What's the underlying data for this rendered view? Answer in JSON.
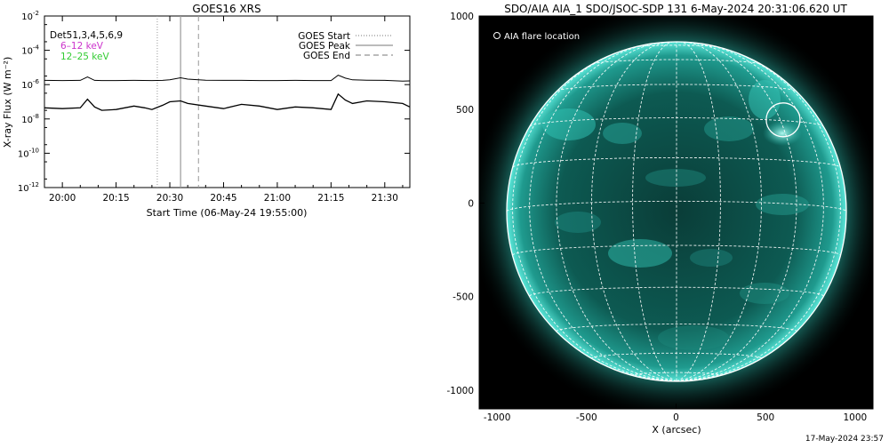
{
  "goes_panel": {
    "title": "GOES16 XRS",
    "xlabel": "Start Time (06-May-24 19:55:00)",
    "ylabel": "X-ray Flux (W m⁻²)",
    "detectors_label": "Det51,3,4,5,6,9",
    "legend_low": {
      "text": "6–12 keV",
      "color": "#cc33cc"
    },
    "legend_high": {
      "text": "12–25 keV",
      "color": "#33cc33"
    },
    "marker_legend": [
      {
        "text": "GOES Start",
        "style": "dotted"
      },
      {
        "text": "GOES Peak",
        "style": "solid"
      },
      {
        "text": "GOES End",
        "style": "dashed"
      }
    ]
  },
  "aia_panel": {
    "title": "SDO/AIA AIA_1 SDO/JSOC-SDP 131  6-May-2024 20:31:06.620 UT",
    "legend_text": "AIA flare location",
    "xlabel": "X (arcsec)",
    "colors": {
      "sun_core": "#0a4a44",
      "sun_bright": "#3fd6c8",
      "background": "#000000"
    }
  },
  "footer_timestamp": "17-May-2024 23:57",
  "chart_data": [
    {
      "type": "line",
      "title": "GOES16 XRS",
      "xlabel": "Start Time (06-May-24 19:55:00)",
      "ylabel": "X-ray Flux (W m⁻²)",
      "x_unit": "minutes since 19:55:00",
      "xlim": [
        0,
        102
      ],
      "ylim_log10": [
        -12,
        -2
      ],
      "y_scale": "log",
      "xtick_labels": [
        "20:00",
        "20:15",
        "20:30",
        "20:45",
        "21:00",
        "21:15",
        "21:30"
      ],
      "xtick_values": [
        5,
        20,
        35,
        50,
        65,
        80,
        95
      ],
      "ytick_exponents": [
        -12,
        -10,
        -8,
        -6,
        -4,
        -2
      ],
      "markers": [
        {
          "name": "GOES Start",
          "x": 31.5,
          "style": "dotted"
        },
        {
          "name": "GOES Peak",
          "x": 38.0,
          "style": "solid"
        },
        {
          "name": "GOES End",
          "x": 43.0,
          "style": "dashed"
        }
      ],
      "series": [
        {
          "name": "6–12 keV",
          "color": "#000000",
          "x": [
            0,
            5,
            10,
            12,
            14,
            16,
            20,
            25,
            30,
            33,
            35,
            38,
            40,
            45,
            50,
            55,
            60,
            65,
            70,
            75,
            80,
            82,
            84,
            86,
            90,
            95,
            100,
            102
          ],
          "log10_y": [
            -5.75,
            -5.76,
            -5.75,
            -5.55,
            -5.75,
            -5.76,
            -5.76,
            -5.75,
            -5.76,
            -5.75,
            -5.72,
            -5.6,
            -5.68,
            -5.74,
            -5.75,
            -5.75,
            -5.76,
            -5.76,
            -5.75,
            -5.76,
            -5.76,
            -5.45,
            -5.62,
            -5.72,
            -5.74,
            -5.75,
            -5.8,
            -5.78
          ]
        },
        {
          "name": "12–25 keV",
          "color": "#000000",
          "x": [
            0,
            5,
            10,
            12,
            14,
            16,
            20,
            25,
            28,
            30,
            33,
            35,
            38,
            40,
            45,
            50,
            55,
            60,
            65,
            70,
            75,
            80,
            82,
            84,
            86,
            90,
            95,
            100,
            102
          ],
          "log10_y": [
            -7.35,
            -7.4,
            -7.35,
            -6.85,
            -7.3,
            -7.5,
            -7.45,
            -7.25,
            -7.35,
            -7.45,
            -7.2,
            -7.0,
            -6.95,
            -7.1,
            -7.25,
            -7.4,
            -7.15,
            -7.25,
            -7.45,
            -7.3,
            -7.35,
            -7.45,
            -6.55,
            -6.9,
            -7.1,
            -6.95,
            -7.0,
            -7.1,
            -7.3
          ]
        }
      ]
    },
    {
      "type": "scatter",
      "title": "SDO/AIA AIA_1 SDO/JSOC-SDP 131  6-May-2024 20:31:06.620 UT",
      "xlabel": "X (arcsec)",
      "ylabel": "",
      "xlim": [
        -1100,
        1100
      ],
      "ylim": [
        -1100,
        1000
      ],
      "xtick_values": [
        -1000,
        -500,
        0,
        500,
        1000
      ],
      "ytick_values": [
        -1000,
        -500,
        0,
        500,
        1000
      ],
      "solar_radius_arcsec": 950,
      "series": [
        {
          "name": "AIA flare location",
          "x": [
            598
          ],
          "y": [
            445
          ]
        }
      ]
    }
  ]
}
